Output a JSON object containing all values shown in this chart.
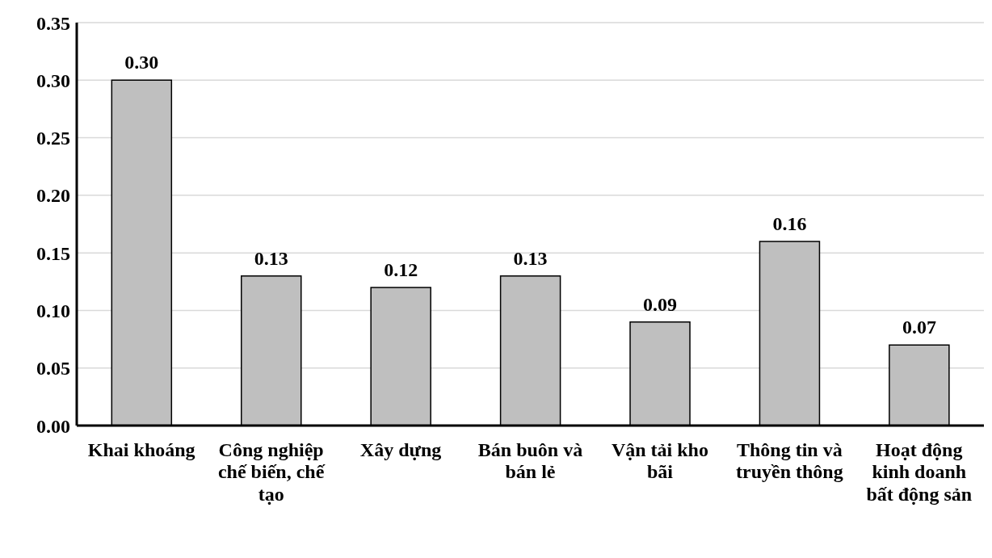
{
  "chart_data": {
    "type": "bar",
    "categories": [
      "Khai khoáng",
      "Công nghiệp chế biến, chế tạo",
      "Xây dựng",
      "Bán buôn và bán lẻ",
      "Vận tải kho bãi",
      "Thông tin và truyền thông",
      "Hoạt động kinh doanh bất động sản"
    ],
    "values": [
      0.3,
      0.13,
      0.12,
      0.13,
      0.09,
      0.16,
      0.07
    ],
    "value_labels": [
      "0.30",
      "0.13",
      "0.12",
      "0.13",
      "0.09",
      "0.16",
      "0.07"
    ],
    "color": "#bfbfbf",
    "ylim": [
      0,
      0.35
    ],
    "yticks": [
      {
        "value": 0,
        "label": "0.00"
      },
      {
        "value": 0.05,
        "label": "0.05"
      },
      {
        "value": 0.1,
        "label": "0.10"
      },
      {
        "value": 0.15,
        "label": "0.15"
      },
      {
        "value": 0.2,
        "label": "0.20"
      },
      {
        "value": 0.25,
        "label": "0.25"
      },
      {
        "value": 0.3,
        "label": "0.30"
      },
      {
        "value": 0.35,
        "label": "0.35"
      }
    ],
    "grid": "y"
  }
}
